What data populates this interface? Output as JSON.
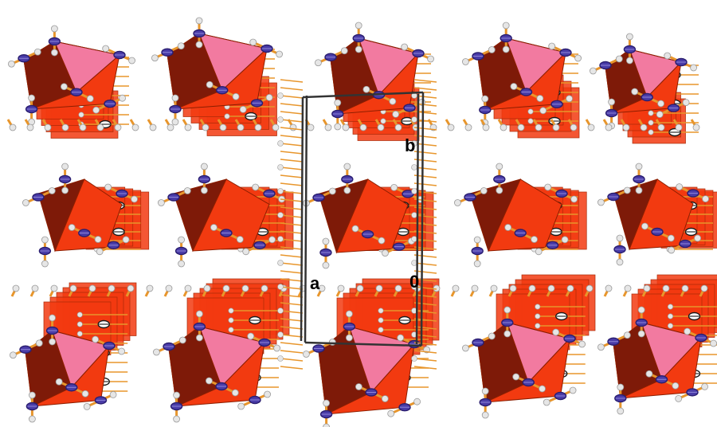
{
  "axis_labels": {
    "b": "b",
    "a": "a",
    "origin": "0"
  },
  "colors": {
    "octahedron_light_face": "#f27aa0",
    "octahedron_dark_face": "#7e1a08",
    "octahedron_mid_face": "#f23a10",
    "octahedron_edge": "#8c1e00",
    "bond": "#e8962c",
    "bond_dark": "#b86a12",
    "ellipsoid_blue": "#4a3ca8",
    "ellipsoid_black": "#1a1a1a",
    "hydrogen": "#e6e6e6",
    "unit_cell": "#333333"
  },
  "layers": [
    {
      "name": "top-layer",
      "octahedra_style": "pink-top"
    },
    {
      "name": "middle-layer",
      "octahedra_style": "red-side"
    },
    {
      "name": "bottom-layer",
      "octahedra_style": "pink-top"
    }
  ]
}
